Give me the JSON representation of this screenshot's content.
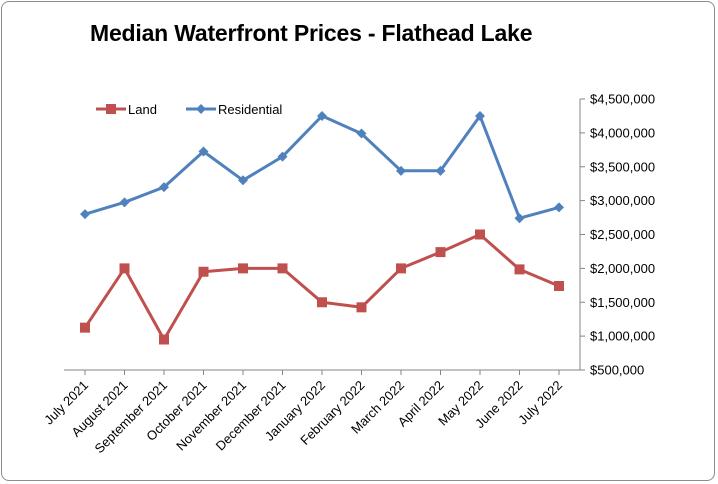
{
  "chart_data": {
    "type": "line",
    "title": "Median Waterfront Prices - Flathead Lake",
    "xlabel": "",
    "ylabel": "",
    "ylim": [
      500000,
      4500000
    ],
    "yticks": [
      500000,
      1000000,
      1500000,
      2000000,
      2500000,
      3000000,
      3500000,
      4000000,
      4500000
    ],
    "ytick_labels": [
      "$500,000",
      "$1,000,000",
      "$1,500,000",
      "$2,000,000",
      "$2,500,000",
      "$3,000,000",
      "$3,500,000",
      "$4,000,000",
      "$4,500,000"
    ],
    "y_axis_side": "right",
    "grid": false,
    "legend_position": "top-left",
    "categories": [
      "July 2021",
      "August 2021",
      "September 2021",
      "October 2021",
      "November 2021",
      "December 2021",
      "January 2022",
      "February 2022",
      "March 2022",
      "April 2022",
      "May 2022",
      "June 2022",
      "July 2022"
    ],
    "series": [
      {
        "name": "Land",
        "color": "#C0504D",
        "marker": "square",
        "values": [
          1125000,
          2000000,
          950000,
          1950000,
          2000000,
          2000000,
          1500000,
          1425000,
          2000000,
          2240000,
          2500000,
          1985000,
          1740000
        ]
      },
      {
        "name": "Residential",
        "color": "#4F81BD",
        "marker": "diamond",
        "values": [
          2800000,
          2975000,
          3200000,
          3725000,
          3300000,
          3650000,
          4250000,
          3990000,
          3440000,
          3440000,
          4250000,
          2740000,
          2900000
        ]
      }
    ]
  }
}
